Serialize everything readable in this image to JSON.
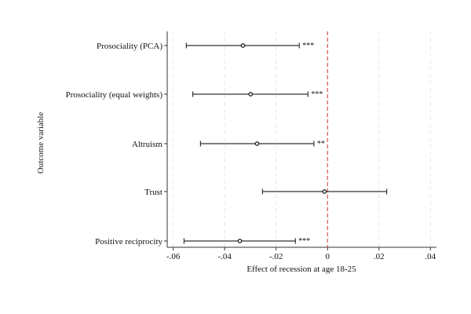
{
  "chart_data": {
    "type": "coefficient-plot",
    "title": "",
    "xlabel": "Effect of recession at age 18-25",
    "ylabel": "Outcome variable",
    "xlim": [
      -0.06,
      0.04
    ],
    "xticks": [
      -0.06,
      -0.04,
      -0.02,
      0,
      0.02,
      0.04
    ],
    "xtick_labels": [
      "-.06",
      "-.04",
      "-.02",
      "0",
      ".02",
      ".04"
    ],
    "grid": "vertical dashed",
    "reference_line": {
      "x": 0,
      "color": "#d9534f"
    },
    "categories": [
      "Prosociality (PCA)",
      "Prosociality (equal weights)",
      "Altruism",
      "Trust",
      "Positive reciprocity"
    ],
    "estimates": [
      -0.0329,
      -0.0299,
      -0.0274,
      -0.0012,
      -0.0341
    ],
    "ci_lower": [
      -0.0549,
      -0.0524,
      -0.0494,
      -0.0253,
      -0.0558
    ],
    "ci_upper": [
      -0.011,
      -0.0076,
      -0.0053,
      0.023,
      -0.0125
    ],
    "significance": [
      "***",
      "***",
      "**",
      "",
      "***"
    ]
  }
}
